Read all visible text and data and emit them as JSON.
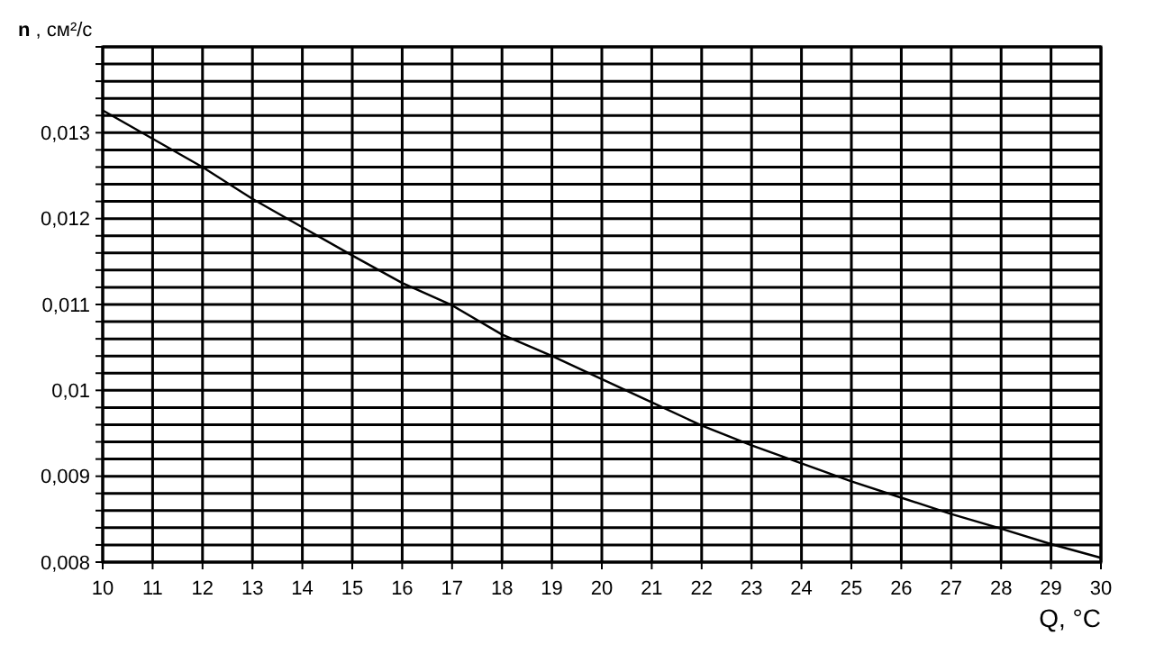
{
  "chart_data": {
    "type": "line",
    "ylabel": "n , см²/с",
    "xlabel": "Q, °C",
    "x": [
      10,
      11,
      12,
      13,
      14,
      15,
      16,
      17,
      18,
      19,
      20,
      21,
      22,
      23,
      24,
      25,
      26,
      27,
      28,
      29,
      30
    ],
    "series": [
      {
        "color": "#000000",
        "values": [
          0.01326,
          0.01293,
          0.0126,
          0.01223,
          0.0119,
          0.01157,
          0.01125,
          0.01099,
          0.01065,
          0.0104,
          0.01013,
          0.00986,
          0.00959,
          0.00936,
          0.00915,
          0.00894,
          0.00875,
          0.00856,
          0.00839,
          0.00821,
          0.00805
        ]
      }
    ],
    "xlim": [
      10,
      30
    ],
    "xticks": [
      10,
      11,
      12,
      13,
      14,
      15,
      16,
      17,
      18,
      19,
      20,
      21,
      22,
      23,
      24,
      25,
      26,
      27,
      28,
      29,
      30
    ],
    "ylim": [
      0.008,
      0.014
    ],
    "yticks": [
      {
        "value": 0.008,
        "label": "0,008"
      },
      {
        "value": 0.0082,
        "label": null
      },
      {
        "value": 0.0084,
        "label": null
      },
      {
        "value": 0.0086,
        "label": null
      },
      {
        "value": 0.0088,
        "label": null
      },
      {
        "value": 0.009,
        "label": "0,009"
      },
      {
        "value": 0.0092,
        "label": null
      },
      {
        "value": 0.0094,
        "label": null
      },
      {
        "value": 0.0096,
        "label": null
      },
      {
        "value": 0.0098,
        "label": null
      },
      {
        "value": 0.01,
        "label": "0,01"
      },
      {
        "value": 0.0102,
        "label": null
      },
      {
        "value": 0.0104,
        "label": null
      },
      {
        "value": 0.0106,
        "label": null
      },
      {
        "value": 0.0108,
        "label": null
      },
      {
        "value": 0.011,
        "label": "0,011"
      },
      {
        "value": 0.0112,
        "label": null
      },
      {
        "value": 0.0114,
        "label": null
      },
      {
        "value": 0.0116,
        "label": null
      },
      {
        "value": 0.0118,
        "label": null
      },
      {
        "value": 0.012,
        "label": "0,012"
      },
      {
        "value": 0.0122,
        "label": null
      },
      {
        "value": 0.0124,
        "label": null
      },
      {
        "value": 0.0126,
        "label": null
      },
      {
        "value": 0.0128,
        "label": null
      },
      {
        "value": 0.013,
        "label": "0,013"
      },
      {
        "value": 0.0132,
        "label": null
      },
      {
        "value": 0.0134,
        "label": null
      },
      {
        "value": 0.0136,
        "label": null
      },
      {
        "value": 0.0138,
        "label": null
      },
      {
        "value": 0.014,
        "label": null
      }
    ],
    "grid": true,
    "marker": "none",
    "line_style": "solid"
  }
}
